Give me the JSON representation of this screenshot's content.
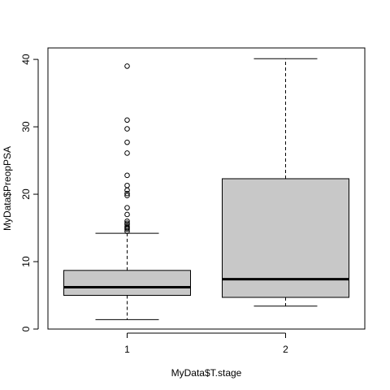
{
  "chart_data": {
    "type": "boxplot",
    "title": "",
    "xlabel": "MyData$T.stage",
    "ylabel": "MyData$PreopPSA",
    "ylim": [
      0,
      41.7
    ],
    "yticks": [
      0,
      10,
      20,
      30,
      40
    ],
    "grid": false,
    "legend": "none",
    "box_fill": "#c8c8c8",
    "categories": [
      "1",
      "2"
    ],
    "boxes": [
      {
        "category": "1",
        "whisker_low": 1.4,
        "q1": 5.0,
        "median": 6.2,
        "q3": 8.7,
        "whisker_high": 14.2,
        "outliers": [
          14.5,
          14.8,
          15.0,
          15.2,
          15.5,
          15.7,
          16.0,
          17.0,
          18.0,
          19.8,
          20.1,
          20.6,
          21.3,
          22.8,
          26.1,
          27.7,
          29.7,
          31.0,
          39.0
        ]
      },
      {
        "category": "2",
        "whisker_low": 3.4,
        "q1": 4.7,
        "median": 7.4,
        "q3": 22.3,
        "whisker_high": 40.1,
        "outliers": []
      }
    ]
  }
}
